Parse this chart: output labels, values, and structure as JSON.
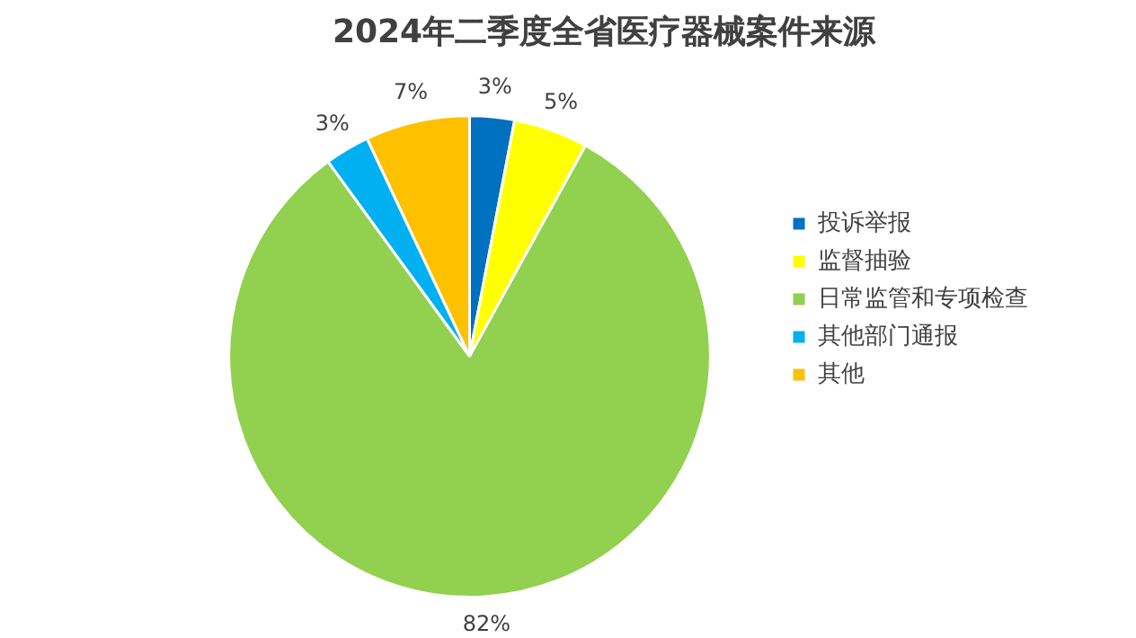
{
  "chart_data": {
    "type": "pie",
    "title": "2024年二季度全省医疗器械案件来源",
    "categories": [
      "投诉举报",
      "监督抽验",
      "日常监管和专项检查",
      "其他部门通报",
      "其他"
    ],
    "values": [
      3,
      5,
      82,
      3,
      7
    ],
    "colors": [
      "#0070c0",
      "#ffff00",
      "#92d050",
      "#00b0f0",
      "#ffc000"
    ],
    "value_labels": [
      "3%",
      "5%",
      "82%",
      "3%",
      "7%"
    ],
    "legend": "right"
  }
}
